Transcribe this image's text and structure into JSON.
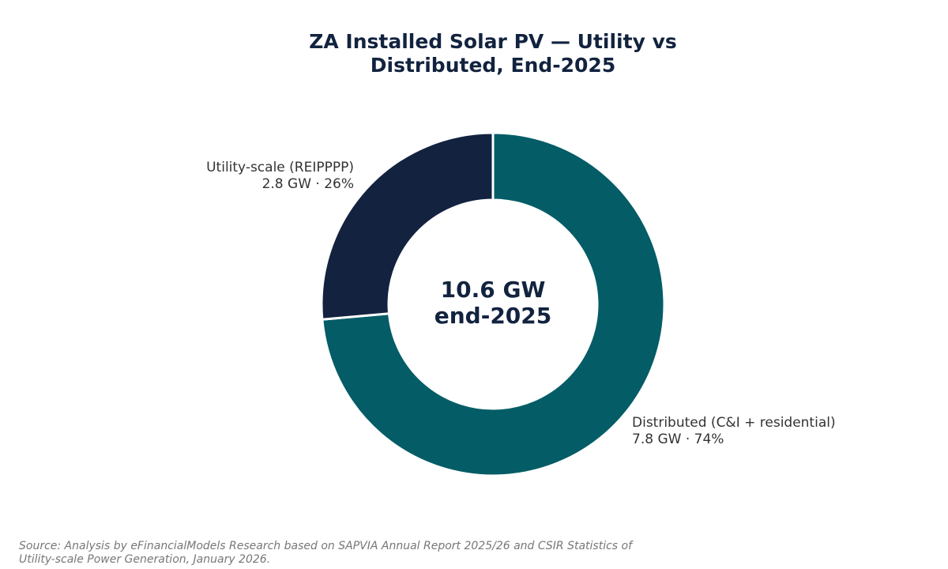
{
  "chart_data": {
    "type": "pie",
    "variant": "donut",
    "title": [
      "ZA Installed Solar PV — Utility vs",
      "Distributed, End-2025"
    ],
    "center_label": [
      "10.6 GW",
      "end-2025"
    ],
    "unit": "GW",
    "total": 10.6,
    "start_angle": "12 o'clock",
    "direction": "clockwise",
    "legend": "none",
    "slices": [
      {
        "name": "Distributed (C&I + residential)",
        "value": 7.8,
        "percent": 74,
        "value_text": "7.8 GW · 74%",
        "color": "#035c66"
      },
      {
        "name": "Utility-scale (REIPPPP)",
        "value": 2.8,
        "percent": 26,
        "value_text": "2.8 GW · 26%",
        "color": "#12223f"
      }
    ],
    "source": [
      "Source: Analysis by eFinancialModels Research based on SAPVIA Annual Report 2025/26 and CSIR Statistics of",
      "Utility-scale Power Generation, January 2026."
    ]
  }
}
